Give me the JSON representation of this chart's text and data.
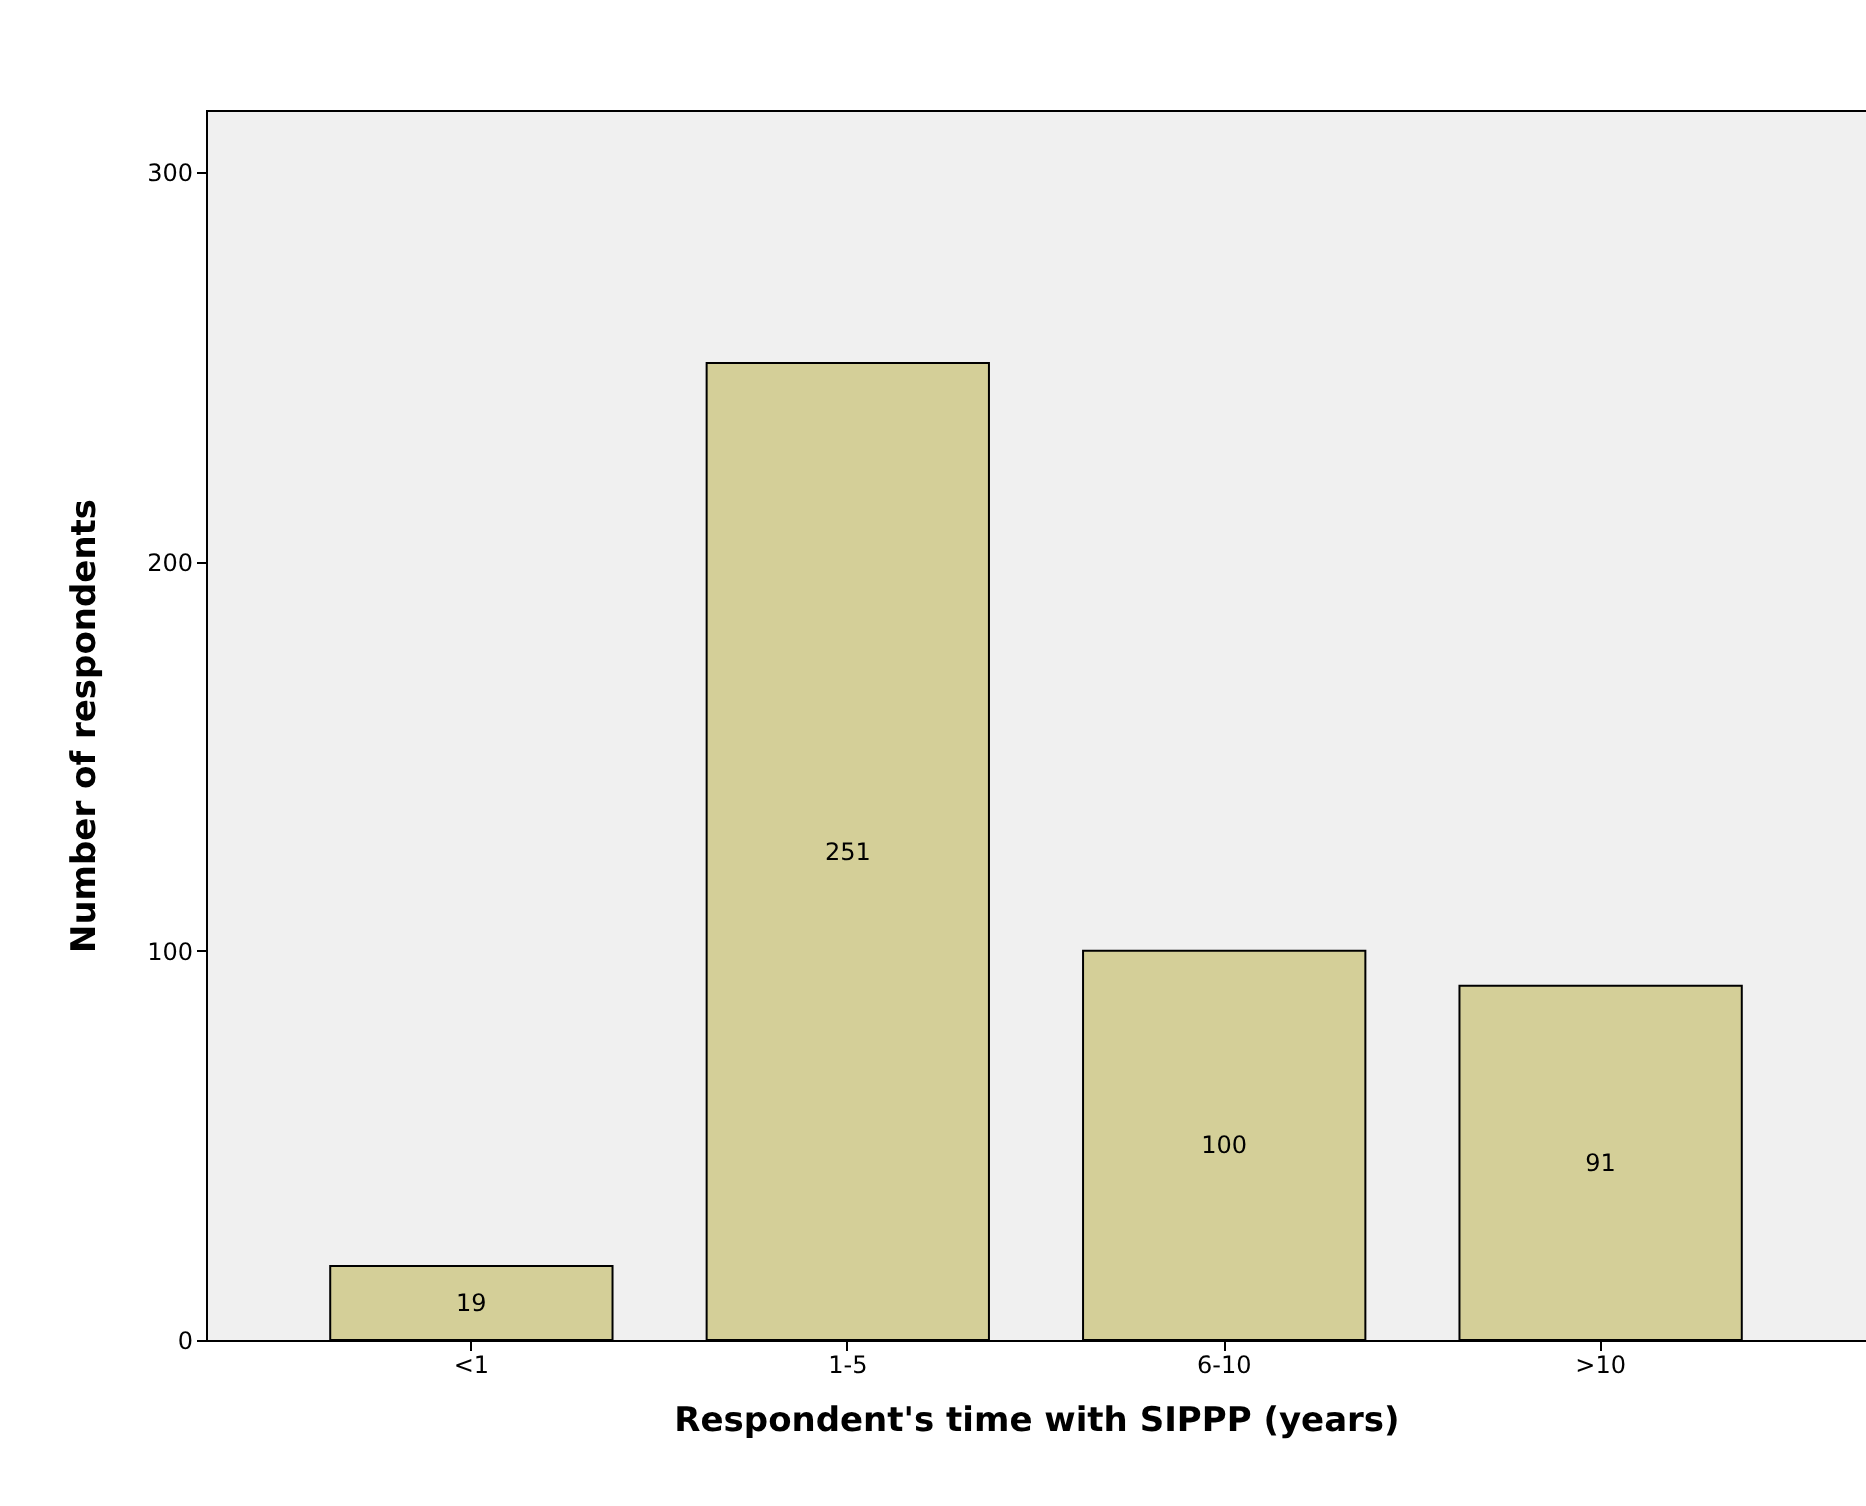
{
  "chart_data": {
    "type": "bar",
    "xlabel": "Respondent's time with SIPPP (years)",
    "ylabel": "Number of respondents",
    "categories": [
      "<1",
      "1-5",
      "6-10",
      ">10"
    ],
    "values": [
      19,
      251,
      100,
      91
    ],
    "color": "#d4cf98",
    "ylim": [
      0,
      316
    ],
    "yticks": [
      0,
      100,
      200,
      300
    ],
    "grid": false,
    "data_labels": true
  }
}
